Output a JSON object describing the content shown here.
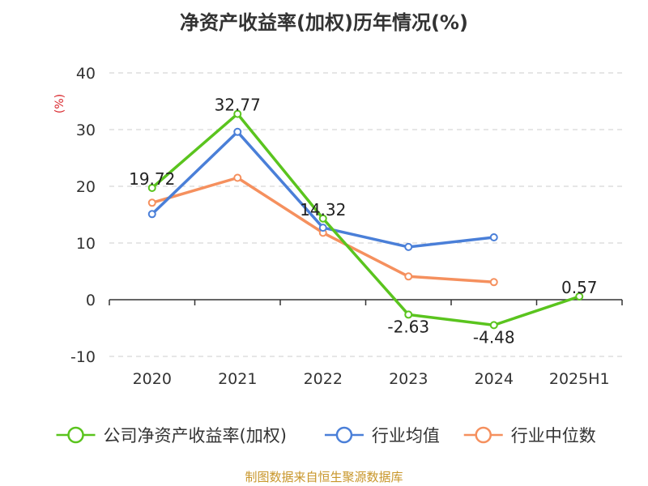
{
  "chart_data": {
    "type": "line",
    "title": "净资产收益率(加权)历年情况(%)",
    "ylabel": "(%)",
    "categories": [
      "2020",
      "2021",
      "2022",
      "2023",
      "2024",
      "2025H1"
    ],
    "ylim": [
      -10,
      40
    ],
    "yticks": [
      -10,
      0,
      10,
      20,
      30,
      40
    ],
    "grid": true,
    "legend_position": "bottom",
    "series": [
      {
        "name": "公司净资产收益率(加权)",
        "color": "#5ac41e",
        "values": [
          19.72,
          32.77,
          14.32,
          -2.63,
          -4.48,
          0.57
        ],
        "labels": [
          "19.72",
          "32.77",
          "14.32",
          "-2.63",
          "-4.48",
          "0.57"
        ]
      },
      {
        "name": "行业均值",
        "color": "#4a7fd8",
        "values": [
          15.1,
          29.6,
          12.7,
          9.3,
          11.0,
          null
        ]
      },
      {
        "name": "行业中位数",
        "color": "#f5905e",
        "values": [
          17.1,
          21.5,
          11.8,
          4.1,
          3.1,
          null
        ]
      }
    ]
  },
  "footer": {
    "source": "制图数据来自恒生聚源数据库",
    "color": "#c8962a"
  }
}
